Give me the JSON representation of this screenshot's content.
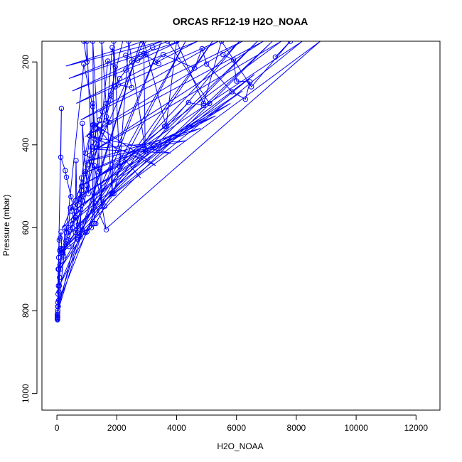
{
  "chart_data": {
    "type": "line",
    "title": "ORCAS RF12-19 H2O_NOAA",
    "xlabel": "H2O_NOAA",
    "ylabel": "Pressure (mbar)",
    "xlim": [
      -500,
      12800
    ],
    "ylim": [
      1040,
      150
    ],
    "y_reversed": true,
    "x_ticks": [
      0,
      2000,
      4000,
      6000,
      8000,
      10000,
      12000
    ],
    "y_ticks": [
      200,
      400,
      600,
      800,
      1000
    ],
    "x_tick_labels": [
      "0",
      "2000",
      "4000",
      "6000",
      "8000",
      "10000",
      "12000"
    ],
    "y_tick_labels": [
      "200",
      "400",
      "600",
      "800",
      "1000"
    ],
    "grid": false,
    "series": [
      {
        "color": "#0000ff",
        "marker": "circle",
        "points": [
          [
            20,
            822
          ],
          [
            22,
            816
          ],
          [
            15,
            810
          ],
          [
            30,
            800
          ],
          [
            45,
            790
          ],
          [
            60,
            775
          ],
          [
            70,
            755
          ],
          [
            80,
            740
          ],
          [
            90,
            720
          ],
          [
            110,
            700
          ],
          [
            140,
            680
          ],
          [
            180,
            665
          ],
          [
            230,
            650
          ],
          [
            300,
            632
          ],
          [
            370,
            618
          ],
          [
            450,
            605
          ],
          [
            520,
            590
          ],
          [
            600,
            575
          ],
          [
            650,
            560
          ],
          [
            700,
            545
          ],
          [
            760,
            530
          ],
          [
            820,
            510
          ],
          [
            880,
            492
          ],
          [
            950,
            470
          ],
          [
            1020,
            448
          ],
          [
            1100,
            425
          ],
          [
            1180,
            405
          ],
          [
            1250,
            385
          ],
          [
            1330,
            362
          ],
          [
            1420,
            340
          ],
          [
            1520,
            320
          ],
          [
            1650,
            300
          ],
          [
            1800,
            280
          ],
          [
            1950,
            260
          ],
          [
            2100,
            240
          ],
          [
            2300,
            220
          ],
          [
            2500,
            200
          ],
          [
            2800,
            182
          ],
          [
            3200,
            165
          ],
          [
            3700,
            150
          ],
          [
            5100,
            300
          ],
          [
            4900,
            305
          ],
          [
            4400,
            298
          ],
          [
            3600,
            355
          ],
          [
            2100,
            452
          ],
          [
            1900,
            518
          ],
          [
            1600,
            548
          ],
          [
            1300,
            590
          ],
          [
            1000,
            610
          ],
          [
            700,
            628
          ],
          [
            400,
            645
          ],
          [
            150,
            660
          ],
          [
            60,
            700
          ],
          [
            40,
            760
          ],
          [
            25,
            805
          ],
          [
            18,
            818
          ],
          [
            900,
            205
          ],
          [
            1200,
            308
          ],
          [
            1250,
            352
          ],
          [
            1100,
            378
          ],
          [
            950,
            420
          ],
          [
            820,
            480
          ],
          [
            760,
            520
          ],
          [
            650,
            560
          ],
          [
            520,
            600
          ],
          [
            380,
            630
          ],
          [
            200,
            660
          ],
          [
            100,
            690
          ],
          [
            50,
            740
          ],
          [
            30,
            790
          ],
          [
            20,
            815
          ],
          [
            150,
            312
          ],
          [
            130,
            430
          ],
          [
            280,
            462
          ],
          [
            320,
            478
          ],
          [
            470,
            525
          ],
          [
            540,
            548
          ],
          [
            620,
            575
          ],
          [
            720,
            592
          ],
          [
            840,
            605
          ],
          [
            950,
            612
          ],
          [
            1150,
            600
          ],
          [
            1700,
            198
          ],
          [
            1950,
            212
          ],
          [
            1800,
            292
          ],
          [
            1650,
            332
          ],
          [
            1750,
            346
          ],
          [
            1500,
            368
          ],
          [
            1300,
            398
          ],
          [
            1150,
            440
          ],
          [
            980,
            508
          ],
          [
            860,
            535
          ],
          [
            780,
            555
          ],
          [
            620,
            612
          ],
          [
            300,
            640
          ],
          [
            120,
            650
          ],
          [
            90,
            655
          ]
        ]
      },
      {
        "color": "#0000ff",
        "marker": "circle",
        "points": [
          [
            5550,
            182
          ],
          [
            5900,
            195
          ],
          [
            6000,
            246
          ],
          [
            6450,
            248
          ],
          [
            6300,
            290
          ],
          [
            5850,
            272
          ],
          [
            5000,
            205
          ],
          [
            4850,
            168
          ],
          [
            4600,
            215
          ],
          [
            3550,
            182
          ],
          [
            3300,
            200
          ],
          [
            3400,
            204
          ],
          [
            2900,
            180
          ],
          [
            3000,
            182
          ],
          [
            2700,
            196
          ],
          [
            2300,
            184
          ],
          [
            2500,
            262
          ],
          [
            2050,
            255
          ],
          [
            1850,
            165
          ],
          [
            1650,
            342
          ],
          [
            1200,
            352
          ],
          [
            1100,
            378
          ],
          [
            950,
            465
          ],
          [
            1250,
            540
          ],
          [
            1650,
            605
          ],
          [
            1250,
            450
          ],
          [
            1400,
            465
          ],
          [
            1200,
            300
          ],
          [
            1150,
            372
          ],
          [
            1050,
            518
          ],
          [
            1000,
            498
          ],
          [
            850,
            348
          ],
          [
            900,
            520
          ],
          [
            800,
            532
          ],
          [
            820,
            500
          ],
          [
            780,
            622
          ],
          [
            680,
            612
          ],
          [
            640,
            438
          ],
          [
            620,
            535
          ],
          [
            560,
            580
          ],
          [
            500,
            560
          ],
          [
            450,
            552
          ],
          [
            380,
            600
          ],
          [
            320,
            612
          ],
          [
            260,
            600
          ],
          [
            230,
            668
          ],
          [
            180,
            658
          ],
          [
            160,
            652
          ],
          [
            140,
            610
          ],
          [
            110,
            625
          ],
          [
            80,
            630
          ],
          [
            60,
            672
          ],
          [
            45,
            700
          ],
          [
            30,
            780
          ],
          [
            20,
            812
          ],
          [
            15,
            820
          ]
        ]
      },
      {
        "color": "#0000ff",
        "marker": "circle",
        "points": [
          [
            7300,
            188
          ],
          [
            7800,
            150
          ],
          [
            6500,
            260
          ],
          [
            5500,
            150
          ],
          [
            4900,
            300
          ],
          [
            4000,
            150
          ],
          [
            3650,
            355
          ],
          [
            2900,
            150
          ],
          [
            2950,
            410
          ],
          [
            2400,
            150
          ],
          [
            2100,
            452
          ],
          [
            1900,
            150
          ],
          [
            1850,
            518
          ],
          [
            1500,
            150
          ],
          [
            1500,
            548
          ],
          [
            1200,
            150
          ],
          [
            1250,
            590
          ],
          [
            1000,
            150
          ],
          [
            1000,
            200
          ],
          [
            900,
            150
          ]
        ]
      },
      {
        "color": "#0000ff",
        "marker": "none",
        "points": [
          [
            1680,
            600
          ],
          [
            8800,
            150
          ],
          [
            1500,
            540
          ],
          [
            8200,
            150
          ],
          [
            1300,
            480
          ],
          [
            7500,
            150
          ],
          [
            1100,
            420
          ],
          [
            6900,
            150
          ],
          [
            950,
            380
          ],
          [
            6200,
            150
          ],
          [
            800,
            340
          ],
          [
            5400,
            150
          ],
          [
            650,
            300
          ],
          [
            4700,
            150
          ],
          [
            520,
            270
          ],
          [
            4100,
            150
          ],
          [
            400,
            240
          ],
          [
            3500,
            150
          ],
          [
            300,
            210
          ],
          [
            2900,
            150
          ],
          [
            200,
            600
          ],
          [
            6100,
            150
          ],
          [
            150,
            660
          ],
          [
            5200,
            150
          ],
          [
            100,
            700
          ],
          [
            4300,
            150
          ],
          [
            80,
            740
          ],
          [
            3500,
            150
          ],
          [
            60,
            780
          ],
          [
            2800,
            150
          ],
          [
            40,
            800
          ],
          [
            2200,
            150
          ]
        ]
      },
      {
        "color": "#0000ff",
        "marker": "none",
        "points": [
          [
            250,
            650
          ],
          [
            7200,
            150
          ],
          [
            350,
            620
          ],
          [
            6700,
            150
          ],
          [
            450,
            590
          ],
          [
            6600,
            230
          ],
          [
            550,
            560
          ],
          [
            6200,
            270
          ],
          [
            650,
            530
          ],
          [
            5800,
            300
          ],
          [
            750,
            500
          ],
          [
            5300,
            330
          ],
          [
            850,
            470
          ],
          [
            4800,
            360
          ],
          [
            950,
            440
          ],
          [
            4300,
            390
          ],
          [
            1050,
            410
          ],
          [
            3800,
            420
          ],
          [
            1150,
            380
          ],
          [
            3300,
            450
          ],
          [
            1250,
            350
          ],
          [
            2800,
            480
          ]
        ]
      }
    ]
  }
}
